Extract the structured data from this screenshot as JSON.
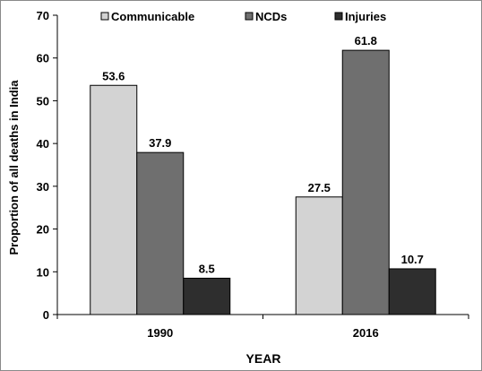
{
  "chart_data": {
    "type": "bar",
    "title": "",
    "xlabel": "YEAR",
    "ylabel": "Proportion of all deaths in India",
    "categories": [
      "1990",
      "2016"
    ],
    "series": [
      {
        "name": "Communicable",
        "values": [
          53.6,
          27.5
        ],
        "color": "#d3d3d3"
      },
      {
        "name": "NCDs",
        "values": [
          37.9,
          61.8
        ],
        "color": "#6f6f6f"
      },
      {
        "name": "Injuries",
        "values": [
          8.5,
          10.7
        ],
        "color": "#2e2e2e"
      }
    ],
    "value_labels": [
      [
        "53.6",
        "27.5"
      ],
      [
        "37.9",
        "61.8"
      ],
      [
        "8.5",
        "10.7"
      ]
    ],
    "ylim": [
      0,
      70
    ],
    "yticks": [
      0,
      10,
      20,
      30,
      40,
      50,
      60,
      70
    ],
    "ytick_labels": [
      "0",
      "10",
      "20",
      "30",
      "40",
      "50",
      "60",
      "70"
    ],
    "grid": false,
    "legend_position": "top"
  }
}
